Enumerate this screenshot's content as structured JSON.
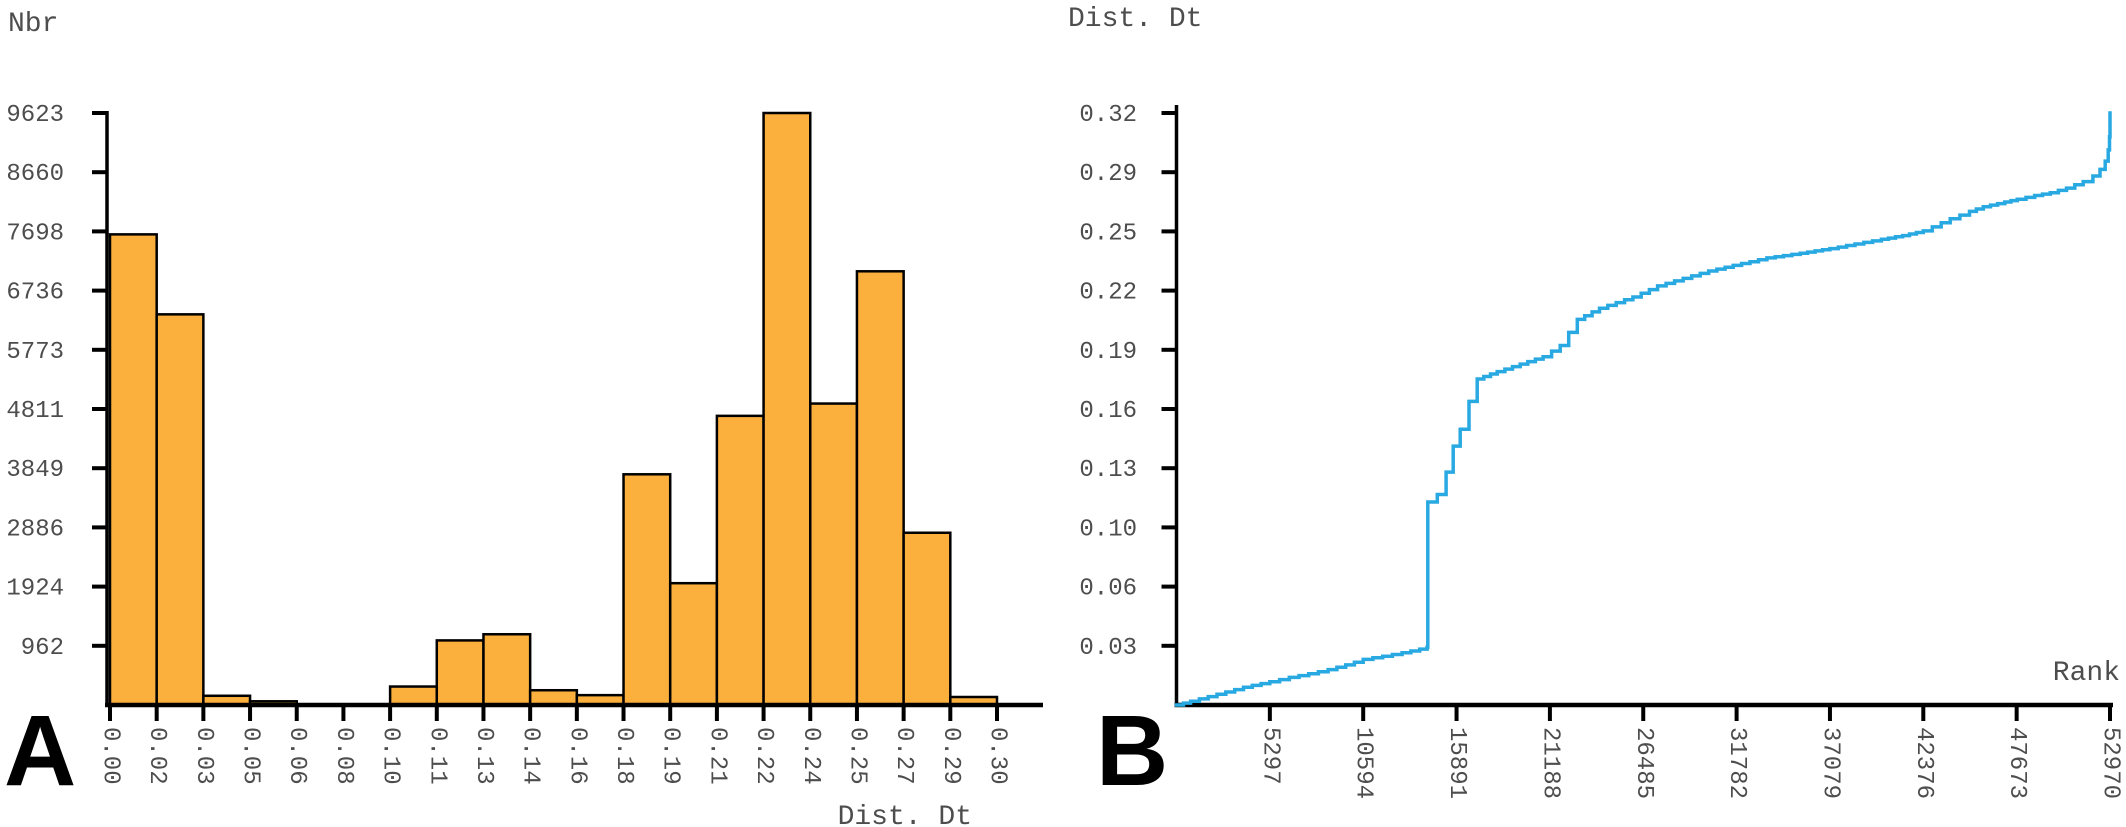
{
  "figure": {
    "background": "#ffffff",
    "panel_a_letter": "A",
    "panel_b_letter": "B"
  },
  "chart_data": [
    {
      "type": "bar",
      "panel": "A",
      "title": "",
      "ylabel": "Nbr",
      "xlabel": "Dist. Dt",
      "bin_edge_labels": [
        "0.00",
        "0.02",
        "0.03",
        "0.05",
        "0.06",
        "0.08",
        "0.10",
        "0.11",
        "0.13",
        "0.14",
        "0.16",
        "0.18",
        "0.19",
        "0.21",
        "0.22",
        "0.24",
        "0.25",
        "0.27",
        "0.29",
        "0.30"
      ],
      "counts": [
        7650,
        6350,
        150,
        60,
        0,
        0,
        300,
        1050,
        1150,
        240,
        160,
        3750,
        1980,
        4700,
        9623,
        4900,
        7050,
        2800,
        130
      ],
      "y_ticks": [
        {
          "label": "9623",
          "value": 9623
        },
        {
          "label": "8660",
          "value": 8660.7
        },
        {
          "label": "7698",
          "value": 7698.4
        },
        {
          "label": "6736",
          "value": 6736.1
        },
        {
          "label": "5773",
          "value": 5773.8
        },
        {
          "label": "4811",
          "value": 4811.5
        },
        {
          "label": "3849",
          "value": 3849.2
        },
        {
          "label": "2886",
          "value": 2886.9
        },
        {
          "label": "1924",
          "value": 1924.6
        },
        {
          "label": "962",
          "value": 962.3
        }
      ],
      "ylim": [
        0,
        9623
      ],
      "grid": false,
      "bar_color": "#FBB03D",
      "bar_edge_color": "#000000"
    },
    {
      "type": "line",
      "panel": "B",
      "title": "",
      "ylabel": "Dist. Dt",
      "xlabel": "Rank",
      "x_ticks": [
        {
          "label": "5297",
          "value": 5297
        },
        {
          "label": "10594",
          "value": 10594
        },
        {
          "label": "15891",
          "value": 15891
        },
        {
          "label": "21188",
          "value": 21188
        },
        {
          "label": "26485",
          "value": 26485
        },
        {
          "label": "31782",
          "value": 31782
        },
        {
          "label": "37079",
          "value": 37079
        },
        {
          "label": "42376",
          "value": 42376
        },
        {
          "label": "47673",
          "value": 47673
        },
        {
          "label": "52970",
          "value": 52970
        }
      ],
      "y_ticks": [
        {
          "label": "0.32",
          "value": 0.3178
        },
        {
          "label": "0.29",
          "value": 0.28602
        },
        {
          "label": "0.25",
          "value": 0.25424
        },
        {
          "label": "0.22",
          "value": 0.22246
        },
        {
          "label": "0.19",
          "value": 0.19068
        },
        {
          "label": "0.16",
          "value": 0.1589
        },
        {
          "label": "0.13",
          "value": 0.12712
        },
        {
          "label": "0.10",
          "value": 0.09534
        },
        {
          "label": "0.06",
          "value": 0.06356
        },
        {
          "label": "0.03",
          "value": 0.03178
        }
      ],
      "xlim": [
        0,
        52970
      ],
      "ylim": [
        0,
        0.3178
      ],
      "grid": false,
      "line_color": "#29A9E1",
      "line_style": "steps",
      "points": [
        [
          0,
          0.0
        ],
        [
          800,
          0.002
        ],
        [
          1800,
          0.0045
        ],
        [
          2800,
          0.007
        ],
        [
          3800,
          0.0095
        ],
        [
          5297,
          0.0125
        ],
        [
          6400,
          0.0148
        ],
        [
          7500,
          0.0168
        ],
        [
          8600,
          0.019
        ],
        [
          9600,
          0.0215
        ],
        [
          10594,
          0.0245
        ],
        [
          11700,
          0.0262
        ],
        [
          12800,
          0.028
        ],
        [
          13800,
          0.03
        ],
        [
          14220,
          0.031
        ],
        [
          14260,
          0.109
        ],
        [
          14800,
          0.113
        ],
        [
          15300,
          0.125
        ],
        [
          15700,
          0.139
        ],
        [
          16100,
          0.148
        ],
        [
          16600,
          0.163
        ],
        [
          17060,
          0.175
        ],
        [
          18200,
          0.179
        ],
        [
          19500,
          0.183
        ],
        [
          20800,
          0.187
        ],
        [
          21770,
          0.193
        ],
        [
          22740,
          0.207
        ],
        [
          24000,
          0.213
        ],
        [
          25900,
          0.219
        ],
        [
          27300,
          0.225
        ],
        [
          28750,
          0.229
        ],
        [
          30200,
          0.233
        ],
        [
          31590,
          0.236
        ],
        [
          33500,
          0.24
        ],
        [
          35390,
          0.2425
        ],
        [
          37079,
          0.245
        ],
        [
          38500,
          0.2475
        ],
        [
          40000,
          0.25
        ],
        [
          41200,
          0.252
        ],
        [
          42376,
          0.2545
        ],
        [
          43900,
          0.261
        ],
        [
          45000,
          0.265
        ],
        [
          45780,
          0.2675
        ],
        [
          47000,
          0.27
        ],
        [
          47710,
          0.2715
        ],
        [
          48700,
          0.2735
        ],
        [
          49580,
          0.275
        ],
        [
          50500,
          0.2775
        ],
        [
          51450,
          0.281
        ],
        [
          52000,
          0.284
        ],
        [
          52400,
          0.2875
        ],
        [
          52700,
          0.292
        ],
        [
          52870,
          0.298
        ],
        [
          52940,
          0.305
        ],
        [
          52970,
          0.3178
        ]
      ]
    }
  ]
}
